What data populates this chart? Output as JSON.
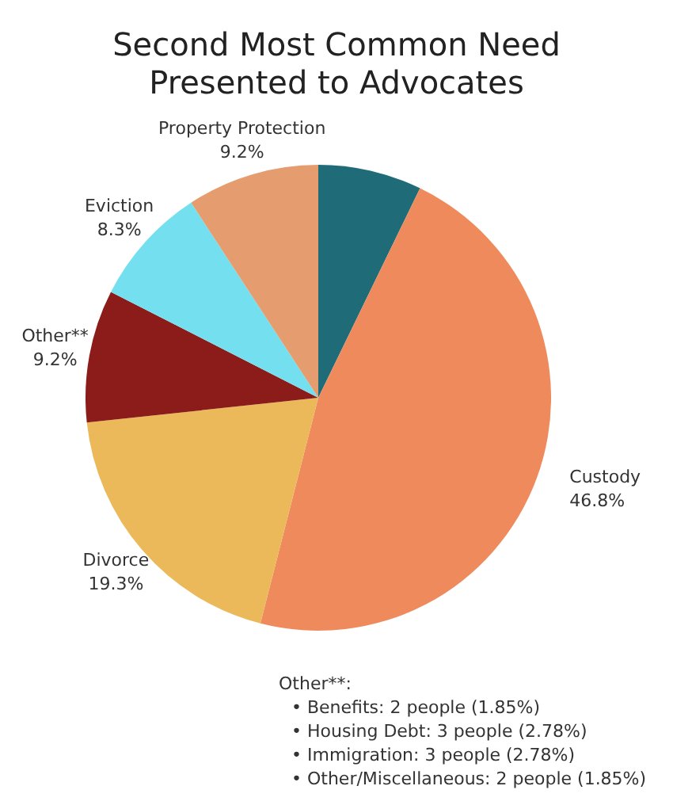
{
  "chart_data": {
    "type": "pie",
    "title": "Second Most Common Need Presented to Advocates",
    "categories": [
      null,
      "Custody",
      "Divorce",
      "Other**",
      "Eviction",
      "Property Protection"
    ],
    "values": [
      7.2,
      46.8,
      19.3,
      9.2,
      8.3,
      9.2
    ],
    "value_labels": [
      null,
      "46.8%",
      "19.3%",
      "9.2%",
      "8.3%",
      "9.2%"
    ],
    "colors": [
      "#1f6b78",
      "#ef8a5c",
      "#ebb95a",
      "#8b1c1a",
      "#74e0ef",
      "#e59c6e"
    ],
    "legend": false,
    "annotations": [
      "Other**:",
      "• Benefits: 2 people (1.85%)",
      "• Housing Debt: 3 people (2.78%)",
      "• Immigration: 3 people (2.78%)",
      "• Other/Miscellaneous: 2 people (1.85%)"
    ]
  }
}
